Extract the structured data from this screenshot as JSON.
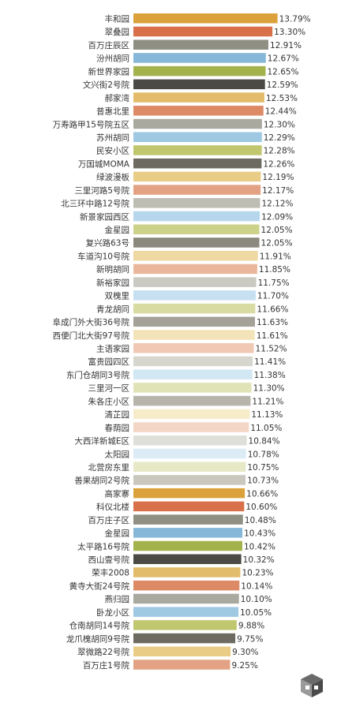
{
  "chart_data": {
    "type": "bar",
    "orientation": "horizontal",
    "title": "",
    "xlabel": "",
    "ylabel": "",
    "xlim": [
      0,
      14.5
    ],
    "grid": false,
    "legend": "none",
    "categories": [
      "丰和园",
      "翠叠园",
      "百万庄辰区",
      "汾州胡同",
      "新世界家园",
      "文兴街2号院",
      "郝家湾",
      "普惠北里",
      "万寿路甲15号院五区",
      "苏州胡同",
      "民安小区",
      "万国城MOMA",
      "绿波漫板",
      "三里河路5号院",
      "北三环中路12号院",
      "新景家园西区",
      "金星园",
      "复兴路63号",
      "车道沟10号院",
      "新明胡同",
      "新裕家园",
      "双槐里",
      "青龙胡同",
      "阜成门外大街36号院",
      "西便门北大街97号院",
      "主语家园",
      "富贵园四区",
      "东门仓胡同3号院",
      "三里河一区",
      "朱各庄小区",
      "清芷园",
      "春荫园",
      "大西洋新城E区",
      "太阳园",
      "北营房东里",
      "善果胡同2号院",
      "高家寨",
      "科仪北楼",
      "百万庄子区",
      "金星园",
      "太平路16号院",
      "西山壹号院",
      "荣丰2008",
      "黄寺大街24号院",
      "燕归园",
      "卧龙小区",
      "仓南胡同14号院",
      "龙爪槐胡同9号院",
      "翠微路22号院",
      "百万庄1号院"
    ],
    "values": [
      13.79,
      13.3,
      12.91,
      12.67,
      12.65,
      12.59,
      12.53,
      12.44,
      12.3,
      12.29,
      12.28,
      12.26,
      12.19,
      12.17,
      12.12,
      12.09,
      12.05,
      12.05,
      11.91,
      11.85,
      11.75,
      11.7,
      11.66,
      11.63,
      11.61,
      11.52,
      11.41,
      11.38,
      11.3,
      11.21,
      11.13,
      11.05,
      10.84,
      10.78,
      10.75,
      10.73,
      10.66,
      10.6,
      10.48,
      10.43,
      10.42,
      10.32,
      10.23,
      10.14,
      10.1,
      10.05,
      9.88,
      9.75,
      9.3,
      9.25
    ],
    "value_labels": [
      "13.79%",
      "13.30%",
      "12.91%",
      "12.67%",
      "12.65%",
      "12.59%",
      "12.53%",
      "12.44%",
      "12.30%",
      "12.29%",
      "12.28%",
      "12.26%",
      "12.19%",
      "12.17%",
      "12.12%",
      "12.09%",
      "12.05%",
      "12.05%",
      "11.91%",
      "11.85%",
      "11.75%",
      "11.70%",
      "11.66%",
      "11.63%",
      "11.61%",
      "11.52%",
      "11.41%",
      "11.38%",
      "11.30%",
      "11.21%",
      "11.13%",
      "11.05%",
      "10.84%",
      "10.78%",
      "10.75%",
      "10.73%",
      "10.66%",
      "10.60%",
      "10.48%",
      "10.43%",
      "10.42%",
      "10.32%",
      "10.23%",
      "10.14%",
      "10.10%",
      "10.05%",
      "9.88%",
      "9.75%",
      "9.30%",
      "9.25%"
    ],
    "colors": [
      "#dba23c",
      "#d8714a",
      "#8f8f84",
      "#86b7d8",
      "#a4b24c",
      "#4c4a44",
      "#e2bc6a",
      "#dd8a66",
      "#a9a9a0",
      "#9fc8e3",
      "#c0c76e",
      "#6c6a61",
      "#e9cd86",
      "#e3a283",
      "#bdbdb4",
      "#b5d6ec",
      "#cdd28a",
      "#8b897e",
      "#efd9a3",
      "#eab79d",
      "#cacac2",
      "#c6e0f1",
      "#d8dca2",
      "#a3a198",
      "#f3e3b8",
      "#f0c8b4",
      "#d6d6ce",
      "#d2e7f4",
      "#e0e3b6",
      "#b6b4ab",
      "#f7ecca",
      "#f4d6c7",
      "#dfdfd9",
      "#dcecf7",
      "#e6e8c6",
      "#c9c7be",
      "#dba23c",
      "#d8714a",
      "#8f8f84",
      "#86b7d8",
      "#a4b24c",
      "#4c4a44",
      "#e2bc6a",
      "#dd8a66",
      "#a9a9a0",
      "#9fc8e3",
      "#c0c76e",
      "#6c6a61",
      "#e9cd86",
      "#e3a283"
    ]
  }
}
